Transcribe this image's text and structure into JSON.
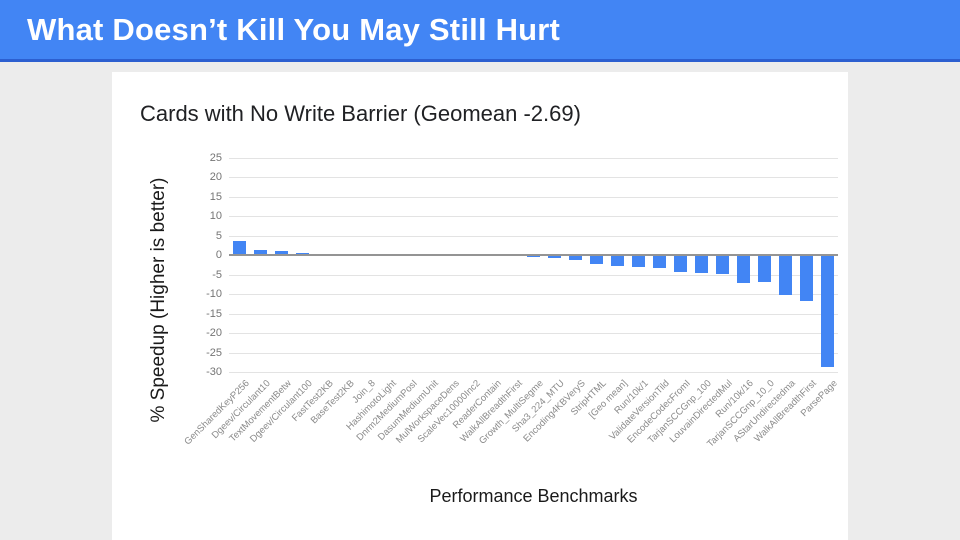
{
  "slide": {
    "title": "What Doesn’t Kill You May Still Hurt"
  },
  "colors": {
    "header_bg": "#4285f4",
    "header_edge": "#2c5fd0",
    "page_bg": "#ececec",
    "canvas_bg": "#ffffff",
    "bar": "#4285f4",
    "gridline": "#e3e3e3",
    "zero_line": "#949494",
    "tick_text": "#757575"
  },
  "chart_data": {
    "type": "bar",
    "title": "Cards with No Write Barrier (Geomean -2.69)",
    "xlabel": "Performance Benchmarks",
    "ylabel": "% Speedup (Higher is better)",
    "ylim": [
      -30,
      25
    ],
    "yticks": [
      25,
      20,
      15,
      10,
      5,
      0,
      -5,
      -10,
      -15,
      -20,
      -25,
      -30
    ],
    "grid": true,
    "legend": "none",
    "categories": [
      "GenSharedKeyP256",
      "Dgeev/Circulant10",
      "TextMovementBetw",
      "Dgeev/Circulant100",
      "FastTest2KB",
      "BaseTest2KB",
      "Join_8",
      "HashimotoLight",
      "Dnrm2MediumPosI",
      "DasumMediumUnit",
      "MulWorkspaceDens",
      "ScaleVec10000Inc2",
      "ReaderContain",
      "WalkAllBreadthFirst",
      "Growth_MultiSegme",
      "Sha3_224_MTU",
      "Encoding4KBVeryS",
      "StripHTML",
      "[Geo mean]",
      "Run/10k/1",
      "ValidateVersionTild",
      "EncodeCodecFromI",
      "TarjanSCCGnp_100",
      "LouvainDirectedMul",
      "Run/10k/16",
      "TarjanSCCGnp_10_0",
      "AStarUndirectedma",
      "WalkAllBreadthFirst",
      "ParsePage"
    ],
    "values": [
      3.6,
      1.4,
      1.1,
      0.7,
      0.2,
      0.1,
      0.1,
      0.0,
      0.0,
      -0.1,
      -0.1,
      -0.2,
      -0.2,
      -0.3,
      -0.4,
      -0.7,
      -1.2,
      -2.3,
      -2.69,
      -3.0,
      -3.3,
      -4.2,
      -4.5,
      -4.9,
      -7.2,
      -6.8,
      -10.3,
      -11.8,
      -28.6
    ]
  }
}
